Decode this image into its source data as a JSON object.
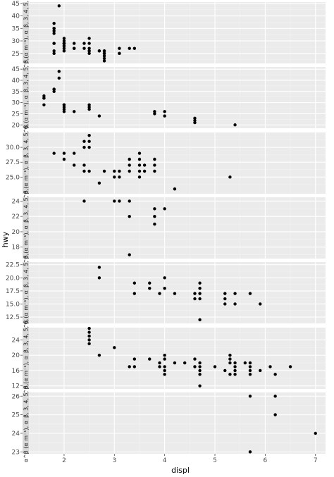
{
  "colors": {
    "panel_bg": "#ebebeb",
    "grid_major": "#ffffff",
    "grid_minor": "#f4f4f4",
    "strip_bg": "#d9d9d9",
    "point": "#000000",
    "tick": "#4d4d4d"
  },
  "chart_data": {
    "type": "scatter",
    "xlabel": "displ",
    "ylabel": "hwy",
    "xlim": [
      1.3,
      7.2
    ],
    "x_ticks": [
      2,
      3,
      4,
      5,
      6,
      7
    ],
    "grid": true,
    "facet_label": "α^β (α m⁻¹), α_β, 3, 4, 5, 6,",
    "panels": [
      {
        "ylim": [
          21,
          45.5
        ],
        "y_ticks": [
          25,
          30,
          35,
          40,
          45
        ],
        "points": [
          [
            1.8,
            29
          ],
          [
            1.8,
            29
          ],
          [
            2.0,
            31
          ],
          [
            2.0,
            30
          ],
          [
            2.8,
            26
          ],
          [
            2.8,
            26
          ],
          [
            3.1,
            27
          ],
          [
            1.8,
            26
          ],
          [
            1.8,
            25
          ],
          [
            2.0,
            28
          ],
          [
            2.0,
            27
          ],
          [
            2.8,
            25
          ],
          [
            2.8,
            25
          ],
          [
            3.1,
            25
          ],
          [
            3.1,
            25
          ],
          [
            2.7,
            26
          ],
          [
            2.7,
            26
          ],
          [
            3.4,
            27
          ],
          [
            1.9,
            44
          ],
          [
            2.0,
            29
          ],
          [
            2.0,
            26
          ],
          [
            2.0,
            29
          ],
          [
            2.0,
            29
          ],
          [
            2.5,
            31
          ],
          [
            2.5,
            29
          ],
          [
            2.5,
            26
          ],
          [
            2.5,
            26
          ],
          [
            2.2,
            29
          ],
          [
            2.2,
            27
          ],
          [
            2.5,
            27
          ],
          [
            2.4,
            29
          ],
          [
            1.8,
            35
          ],
          [
            1.8,
            37
          ],
          [
            1.8,
            35
          ],
          [
            1.8,
            33
          ],
          [
            2.0,
            29
          ],
          [
            2.0,
            28
          ],
          [
            2.0,
            26
          ],
          [
            2.8,
            23
          ],
          [
            2.8,
            24
          ],
          [
            3.3,
            27
          ],
          [
            2.4,
            27
          ],
          [
            2.5,
            25
          ],
          [
            2.2,
            27
          ],
          [
            2.8,
            22
          ],
          [
            1.8,
            34
          ]
        ]
      },
      {
        "ylim": [
          18.5,
          46
        ],
        "y_ticks": [
          20,
          25,
          30,
          35,
          40,
          45
        ],
        "points": [
          [
            1.6,
            33
          ],
          [
            1.6,
            32
          ],
          [
            1.6,
            32
          ],
          [
            1.6,
            29
          ],
          [
            1.8,
            36
          ],
          [
            1.8,
            36
          ],
          [
            1.8,
            35
          ],
          [
            1.9,
            44
          ],
          [
            1.9,
            41
          ],
          [
            2.0,
            29
          ],
          [
            2.0,
            28
          ],
          [
            2.0,
            26
          ],
          [
            2.0,
            27
          ],
          [
            2.0,
            29
          ],
          [
            2.2,
            26
          ],
          [
            2.5,
            29
          ],
          [
            2.5,
            28
          ],
          [
            2.5,
            27
          ],
          [
            2.7,
            24
          ],
          [
            3.8,
            26
          ],
          [
            3.8,
            25
          ],
          [
            4.0,
            26
          ],
          [
            4.0,
            24
          ],
          [
            4.6,
            23
          ],
          [
            4.6,
            22
          ],
          [
            4.6,
            21
          ],
          [
            5.4,
            20
          ]
        ]
      },
      {
        "ylim": [
          22.2,
          32.5
        ],
        "y_ticks": [
          25.0,
          27.5,
          30.0
        ],
        "points": [
          [
            1.8,
            29
          ],
          [
            2.0,
            29
          ],
          [
            2.0,
            28
          ],
          [
            2.2,
            29
          ],
          [
            2.2,
            27
          ],
          [
            2.4,
            30
          ],
          [
            2.4,
            31
          ],
          [
            2.4,
            27
          ],
          [
            2.4,
            26
          ],
          [
            2.5,
            31
          ],
          [
            2.5,
            32
          ],
          [
            2.5,
            30
          ],
          [
            2.5,
            26
          ],
          [
            2.7,
            24
          ],
          [
            2.8,
            26
          ],
          [
            3.0,
            26
          ],
          [
            3.0,
            25
          ],
          [
            3.1,
            26
          ],
          [
            3.1,
            25
          ],
          [
            3.3,
            26
          ],
          [
            3.3,
            27
          ],
          [
            3.3,
            28
          ],
          [
            3.5,
            29
          ],
          [
            3.5,
            28
          ],
          [
            3.5,
            27
          ],
          [
            3.5,
            26
          ],
          [
            3.5,
            25
          ],
          [
            3.6,
            26
          ],
          [
            3.6,
            27
          ],
          [
            3.8,
            28
          ],
          [
            3.8,
            27
          ],
          [
            3.8,
            26
          ],
          [
            4.2,
            23
          ],
          [
            5.3,
            25
          ]
        ]
      },
      {
        "ylim": [
          16.5,
          24.5
        ],
        "y_ticks": [
          18,
          20,
          22,
          24
        ],
        "points": [
          [
            2.4,
            24
          ],
          [
            3.0,
            24
          ],
          [
            3.3,
            22
          ],
          [
            3.3,
            24
          ],
          [
            3.3,
            17
          ],
          [
            3.8,
            23
          ],
          [
            3.8,
            22
          ],
          [
            3.8,
            21
          ],
          [
            4.0,
            23
          ],
          [
            3.1,
            24
          ]
        ]
      },
      {
        "ylim": [
          11.3,
          23
        ],
        "y_ticks": [
          12.5,
          15.0,
          17.5,
          20.0,
          22.5
        ],
        "points": [
          [
            2.7,
            22
          ],
          [
            2.7,
            20
          ],
          [
            3.4,
            19
          ],
          [
            3.4,
            17
          ],
          [
            3.7,
            19
          ],
          [
            3.7,
            18
          ],
          [
            3.9,
            17
          ],
          [
            4.0,
            20
          ],
          [
            4.0,
            18
          ],
          [
            4.2,
            17
          ],
          [
            4.6,
            17
          ],
          [
            4.6,
            16
          ],
          [
            4.7,
            19
          ],
          [
            4.7,
            18
          ],
          [
            4.7,
            17
          ],
          [
            4.7,
            16
          ],
          [
            4.7,
            12
          ],
          [
            5.2,
            17
          ],
          [
            5.2,
            16
          ],
          [
            5.2,
            15
          ],
          [
            5.4,
            17
          ],
          [
            5.4,
            15
          ],
          [
            5.7,
            17
          ],
          [
            5.9,
            15
          ]
        ]
      },
      {
        "ylim": [
          11.2,
          27.2
        ],
        "y_ticks": [
          12,
          16,
          20,
          24
        ],
        "points": [
          [
            2.5,
            26
          ],
          [
            2.5,
            25
          ],
          [
            2.5,
            24
          ],
          [
            2.5,
            23
          ],
          [
            2.5,
            27
          ],
          [
            2.7,
            20
          ],
          [
            3.0,
            22
          ],
          [
            3.3,
            17
          ],
          [
            3.4,
            19
          ],
          [
            3.4,
            17
          ],
          [
            3.7,
            19
          ],
          [
            3.9,
            17
          ],
          [
            3.9,
            18
          ],
          [
            4.0,
            20
          ],
          [
            4.0,
            19
          ],
          [
            4.0,
            17
          ],
          [
            4.0,
            15
          ],
          [
            4.0,
            16
          ],
          [
            4.2,
            18
          ],
          [
            4.4,
            18
          ],
          [
            4.6,
            19
          ],
          [
            4.6,
            17
          ],
          [
            4.7,
            18
          ],
          [
            4.7,
            17
          ],
          [
            4.7,
            16
          ],
          [
            4.7,
            15
          ],
          [
            4.7,
            12
          ],
          [
            5.0,
            17
          ],
          [
            5.2,
            16
          ],
          [
            5.3,
            15
          ],
          [
            5.3,
            18
          ],
          [
            5.3,
            19
          ],
          [
            5.3,
            20
          ],
          [
            5.4,
            17
          ],
          [
            5.4,
            16
          ],
          [
            5.4,
            15
          ],
          [
            5.4,
            18
          ],
          [
            5.6,
            18
          ],
          [
            5.7,
            17
          ],
          [
            5.7,
            16
          ],
          [
            5.7,
            15
          ],
          [
            5.7,
            18
          ],
          [
            5.9,
            16
          ],
          [
            6.1,
            17
          ],
          [
            6.2,
            15
          ],
          [
            6.5,
            17
          ]
        ]
      },
      {
        "ylim": [
          22.9,
          26.2
        ],
        "y_ticks": [
          23,
          24,
          25,
          26
        ],
        "points": [
          [
            5.7,
            26
          ],
          [
            5.7,
            23
          ],
          [
            6.2,
            26
          ],
          [
            6.2,
            25
          ],
          [
            7.0,
            24
          ]
        ]
      }
    ]
  }
}
